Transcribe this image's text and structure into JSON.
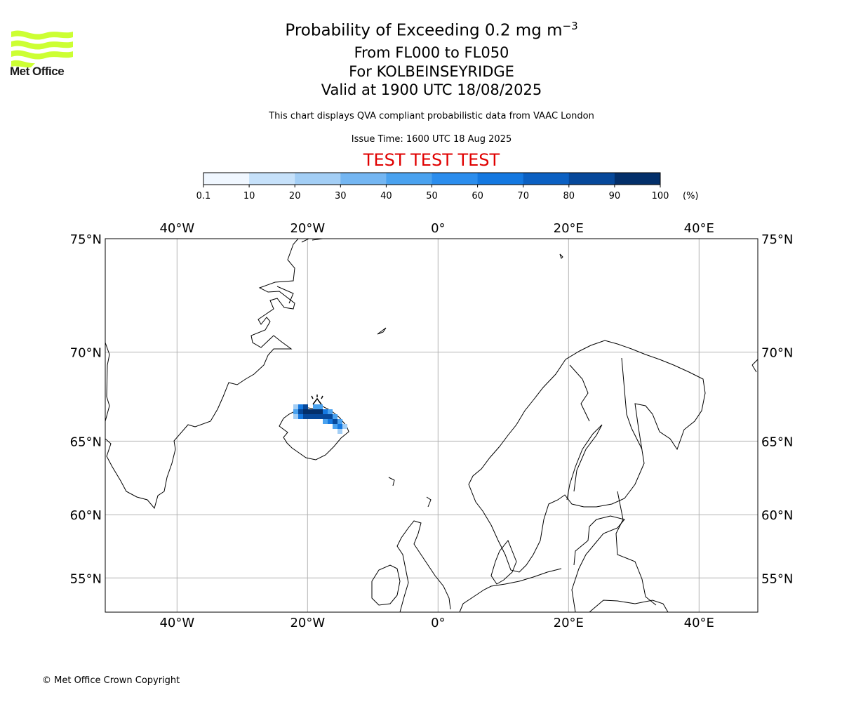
{
  "logo": {
    "text": "Met Office",
    "color": "#ccff33"
  },
  "titles": {
    "line1": "Probability of Exceeding 0.2 mg m",
    "line1_sup": "−3",
    "line2": "From FL000 to FL050",
    "line3": "For KOLBEINSEYRIDGE",
    "line4": "Valid at 1900 UTC 18/08/2025",
    "description": "This chart displays QVA compliant probabilistic data from VAAC London",
    "issue_time": "Issue Time: 1600 UTC 18 Aug 2025",
    "test_banner": "TEST TEST TEST"
  },
  "colorbar": {
    "ticks": [
      "0.1",
      "10",
      "20",
      "30",
      "40",
      "50",
      "60",
      "70",
      "80",
      "90",
      "100"
    ],
    "unit": "(%)",
    "colors": [
      "#f0f7ff",
      "#c6e1fa",
      "#a3cef5",
      "#74b6f2",
      "#4aa2ef",
      "#2b8ded",
      "#1478e0",
      "#0b60c2",
      "#06489a",
      "#032f6a"
    ]
  },
  "map": {
    "lon_labels": [
      "40°W",
      "20°W",
      "0°",
      "20°E",
      "40°E"
    ],
    "lat_labels": [
      "75°N",
      "70°N",
      "65°N",
      "60°N",
      "55°N"
    ],
    "longitudes": [
      -40,
      -20,
      0,
      20,
      40
    ],
    "latitudes": [
      75,
      70,
      65,
      60,
      55
    ],
    "extent": {
      "lon": [
        -51,
        49
      ],
      "lat": [
        52,
        75
      ]
    },
    "plume_levels": [
      20,
      40,
      60,
      80,
      90
    ]
  },
  "footer": {
    "copyright": "© Met Office Crown Copyright"
  }
}
